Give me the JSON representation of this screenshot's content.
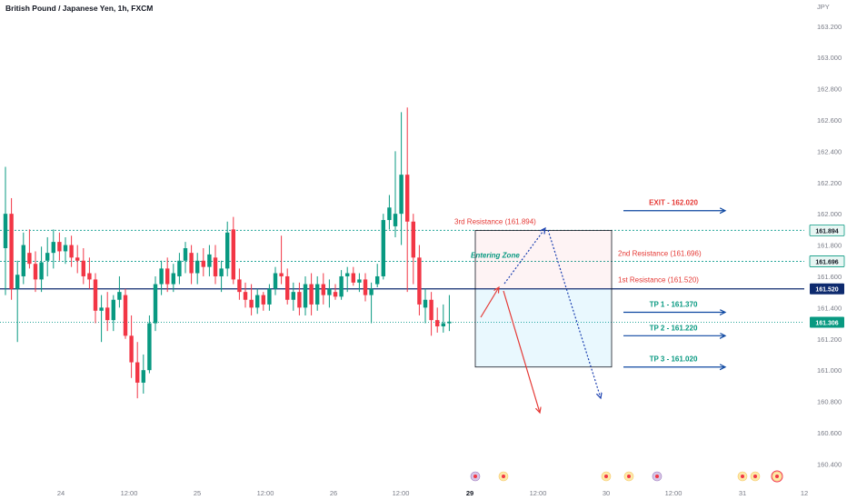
{
  "header": {
    "title": "British Pound / Japanese Yen, 1h, FXCM",
    "currency": "JPY"
  },
  "chart_data": {
    "type": "candlestick",
    "title": "British Pound / Japanese Yen, 1h, FXCM",
    "ylim": [
      160.28,
      163.28
    ],
    "y_ticks": [
      "163.200",
      "163.000",
      "162.800",
      "162.600",
      "162.400",
      "162.200",
      "162.000",
      "161.800",
      "161.600",
      "161.400",
      "161.200",
      "161.000",
      "160.800",
      "160.600",
      "160.400"
    ],
    "x_ticks": [
      "24",
      "12:00",
      "25",
      "12:00",
      "26",
      "12:00",
      "29",
      "12:00",
      "30",
      "12:00",
      "31",
      "12"
    ],
    "candles": [
      {
        "o": 161.78,
        "h": 162.3,
        "l": 161.48,
        "c": 162.0
      },
      {
        "o": 162.0,
        "h": 162.1,
        "l": 161.45,
        "c": 161.52
      },
      {
        "o": 161.52,
        "h": 161.7,
        "l": 161.18,
        "c": 161.61
      },
      {
        "o": 161.6,
        "h": 161.88,
        "l": 161.55,
        "c": 161.8
      },
      {
        "o": 161.75,
        "h": 161.9,
        "l": 161.65,
        "c": 161.68
      },
      {
        "o": 161.68,
        "h": 161.76,
        "l": 161.5,
        "c": 161.58
      },
      {
        "o": 161.58,
        "h": 161.79,
        "l": 161.5,
        "c": 161.69
      },
      {
        "o": 161.7,
        "h": 161.85,
        "l": 161.6,
        "c": 161.75
      },
      {
        "o": 161.75,
        "h": 161.9,
        "l": 161.65,
        "c": 161.82
      },
      {
        "o": 161.82,
        "h": 161.88,
        "l": 161.7,
        "c": 161.76
      },
      {
        "o": 161.76,
        "h": 161.85,
        "l": 161.68,
        "c": 161.8
      },
      {
        "o": 161.8,
        "h": 161.86,
        "l": 161.66,
        "c": 161.72
      },
      {
        "o": 161.72,
        "h": 161.8,
        "l": 161.62,
        "c": 161.7
      },
      {
        "o": 161.7,
        "h": 161.78,
        "l": 161.55,
        "c": 161.6
      },
      {
        "o": 161.62,
        "h": 161.72,
        "l": 161.52,
        "c": 161.58
      },
      {
        "o": 161.58,
        "h": 161.62,
        "l": 161.3,
        "c": 161.38
      },
      {
        "o": 161.38,
        "h": 161.48,
        "l": 161.18,
        "c": 161.4
      },
      {
        "o": 161.4,
        "h": 161.5,
        "l": 161.25,
        "c": 161.32
      },
      {
        "o": 161.32,
        "h": 161.48,
        "l": 161.25,
        "c": 161.45
      },
      {
        "o": 161.45,
        "h": 161.6,
        "l": 161.4,
        "c": 161.5
      },
      {
        "o": 161.48,
        "h": 161.52,
        "l": 161.2,
        "c": 161.22
      },
      {
        "o": 161.22,
        "h": 161.35,
        "l": 160.95,
        "c": 161.05
      },
      {
        "o": 161.05,
        "h": 161.18,
        "l": 160.82,
        "c": 160.92
      },
      {
        "o": 160.92,
        "h": 161.1,
        "l": 160.85,
        "c": 161.0
      },
      {
        "o": 161.0,
        "h": 161.35,
        "l": 160.98,
        "c": 161.3
      },
      {
        "o": 161.3,
        "h": 161.6,
        "l": 161.25,
        "c": 161.55
      },
      {
        "o": 161.55,
        "h": 161.7,
        "l": 161.48,
        "c": 161.65
      },
      {
        "o": 161.65,
        "h": 161.72,
        "l": 161.5,
        "c": 161.55
      },
      {
        "o": 161.55,
        "h": 161.68,
        "l": 161.5,
        "c": 161.62
      },
      {
        "o": 161.6,
        "h": 161.75,
        "l": 161.55,
        "c": 161.7
      },
      {
        "o": 161.7,
        "h": 161.82,
        "l": 161.62,
        "c": 161.78
      },
      {
        "o": 161.75,
        "h": 161.8,
        "l": 161.55,
        "c": 161.62
      },
      {
        "o": 161.62,
        "h": 161.75,
        "l": 161.55,
        "c": 161.7
      },
      {
        "o": 161.7,
        "h": 161.78,
        "l": 161.6,
        "c": 161.66
      },
      {
        "o": 161.66,
        "h": 161.8,
        "l": 161.6,
        "c": 161.74
      },
      {
        "o": 161.72,
        "h": 161.8,
        "l": 161.55,
        "c": 161.6
      },
      {
        "o": 161.6,
        "h": 161.7,
        "l": 161.5,
        "c": 161.65
      },
      {
        "o": 161.65,
        "h": 161.95,
        "l": 161.6,
        "c": 161.88
      },
      {
        "o": 161.9,
        "h": 161.98,
        "l": 161.55,
        "c": 161.58
      },
      {
        "o": 161.58,
        "h": 161.65,
        "l": 161.45,
        "c": 161.5
      },
      {
        "o": 161.5,
        "h": 161.56,
        "l": 161.4,
        "c": 161.45
      },
      {
        "o": 161.45,
        "h": 161.55,
        "l": 161.35,
        "c": 161.4
      },
      {
        "o": 161.4,
        "h": 161.52,
        "l": 161.36,
        "c": 161.48
      },
      {
        "o": 161.48,
        "h": 161.5,
        "l": 161.38,
        "c": 161.42
      },
      {
        "o": 161.42,
        "h": 161.55,
        "l": 161.38,
        "c": 161.52
      },
      {
        "o": 161.52,
        "h": 161.66,
        "l": 161.48,
        "c": 161.62
      },
      {
        "o": 161.62,
        "h": 161.86,
        "l": 161.55,
        "c": 161.6
      },
      {
        "o": 161.6,
        "h": 161.65,
        "l": 161.42,
        "c": 161.45
      },
      {
        "o": 161.45,
        "h": 161.56,
        "l": 161.38,
        "c": 161.5
      },
      {
        "o": 161.5,
        "h": 161.56,
        "l": 161.35,
        "c": 161.4
      },
      {
        "o": 161.4,
        "h": 161.6,
        "l": 161.35,
        "c": 161.55
      },
      {
        "o": 161.55,
        "h": 161.62,
        "l": 161.35,
        "c": 161.42
      },
      {
        "o": 161.42,
        "h": 161.6,
        "l": 161.38,
        "c": 161.55
      },
      {
        "o": 161.55,
        "h": 161.62,
        "l": 161.42,
        "c": 161.48
      },
      {
        "o": 161.48,
        "h": 161.58,
        "l": 161.4,
        "c": 161.52
      },
      {
        "o": 161.5,
        "h": 161.55,
        "l": 161.45,
        "c": 161.47
      },
      {
        "o": 161.47,
        "h": 161.64,
        "l": 161.45,
        "c": 161.6
      },
      {
        "o": 161.6,
        "h": 161.66,
        "l": 161.5,
        "c": 161.62
      },
      {
        "o": 161.62,
        "h": 161.66,
        "l": 161.54,
        "c": 161.56
      },
      {
        "o": 161.56,
        "h": 161.62,
        "l": 161.5,
        "c": 161.58
      },
      {
        "o": 161.58,
        "h": 161.62,
        "l": 161.44,
        "c": 161.48
      },
      {
        "o": 161.48,
        "h": 161.56,
        "l": 161.3,
        "c": 161.52
      },
      {
        "o": 161.55,
        "h": 161.68,
        "l": 161.53,
        "c": 161.6
      },
      {
        "o": 161.6,
        "h": 162.0,
        "l": 161.58,
        "c": 161.96
      },
      {
        "o": 161.96,
        "h": 162.12,
        "l": 161.9,
        "c": 162.04
      },
      {
        "o": 161.92,
        "h": 162.4,
        "l": 161.85,
        "c": 162.0
      },
      {
        "o": 162.0,
        "h": 162.65,
        "l": 161.8,
        "c": 162.25
      },
      {
        "o": 162.25,
        "h": 162.68,
        "l": 161.5,
        "c": 161.95
      },
      {
        "o": 161.95,
        "h": 162.0,
        "l": 161.55,
        "c": 161.72
      },
      {
        "o": 161.72,
        "h": 161.8,
        "l": 161.35,
        "c": 161.42
      },
      {
        "o": 161.4,
        "h": 161.52,
        "l": 161.3,
        "c": 161.45
      },
      {
        "o": 161.45,
        "h": 161.5,
        "l": 161.22,
        "c": 161.32
      },
      {
        "o": 161.32,
        "h": 161.4,
        "l": 161.24,
        "c": 161.28
      },
      {
        "o": 161.28,
        "h": 161.42,
        "l": 161.24,
        "c": 161.3
      },
      {
        "o": 161.3,
        "h": 161.48,
        "l": 161.25,
        "c": 161.31
      }
    ],
    "levels": [
      {
        "name": "3rd Resistance (161.894)",
        "value": 161.894,
        "tag": "161.894"
      },
      {
        "name": "2nd Resistance (161.696)",
        "value": 161.696,
        "tag": "161.696"
      },
      {
        "name": "1st Resistance (161.520)",
        "value": 161.52,
        "tag": "161.520"
      },
      {
        "name": "current",
        "value": 161.306,
        "tag": "161.306"
      }
    ],
    "targets": [
      {
        "label": "EXIT - 162.020",
        "value": 162.02,
        "color": "#e53935"
      },
      {
        "label": "TP 1 - 161.370",
        "value": 161.37,
        "color": "#089981"
      },
      {
        "label": "TP 2 - 161.220",
        "value": 161.22,
        "color": "#089981"
      },
      {
        "label": "TP 3 - 161.020",
        "value": 161.02,
        "color": "#089981"
      }
    ],
    "entering_zone": "Entering Zone",
    "colors": {
      "up": "#089981",
      "down": "#f23645",
      "resistance": "#e53935",
      "support_line": "#2962ff",
      "main_line": "#0d2a6e",
      "arrow_blue": "#1a3fb0",
      "event": "#f23645"
    }
  }
}
